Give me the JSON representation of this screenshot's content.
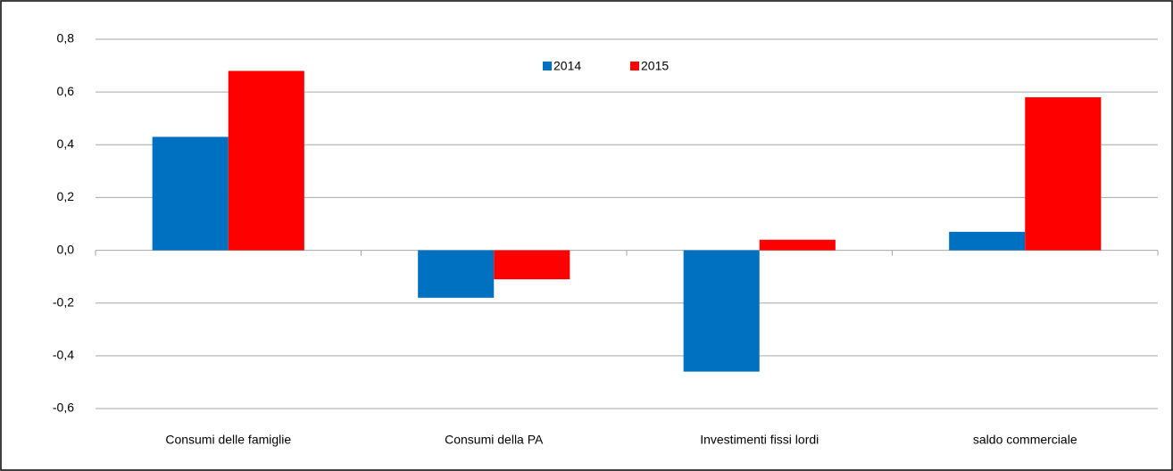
{
  "chart_data": {
    "type": "bar",
    "categories": [
      "Consumi delle famiglie",
      "Consumi della PA",
      "Investimenti fissi lordi",
      "saldo commerciale"
    ],
    "series": [
      {
        "name": "2014",
        "color": "#0070c0",
        "values": [
          0.43,
          -0.18,
          -0.46,
          0.07
        ]
      },
      {
        "name": "2015",
        "color": "#ff0000",
        "values": [
          0.68,
          -0.11,
          0.04,
          0.58
        ]
      }
    ],
    "ylim": [
      -0.6,
      0.8
    ],
    "yticks": [
      {
        "value": 0.8,
        "label": "0,8"
      },
      {
        "value": 0.6,
        "label": "0,6"
      },
      {
        "value": 0.4,
        "label": "0,4"
      },
      {
        "value": 0.2,
        "label": "0,2"
      },
      {
        "value": 0,
        "label": "0,0"
      },
      {
        "value": -0.2,
        "label": "-0,2"
      },
      {
        "value": -0.4,
        "label": "-0,4"
      },
      {
        "value": -0.6,
        "label": "-0,6"
      }
    ],
    "grid": true
  }
}
